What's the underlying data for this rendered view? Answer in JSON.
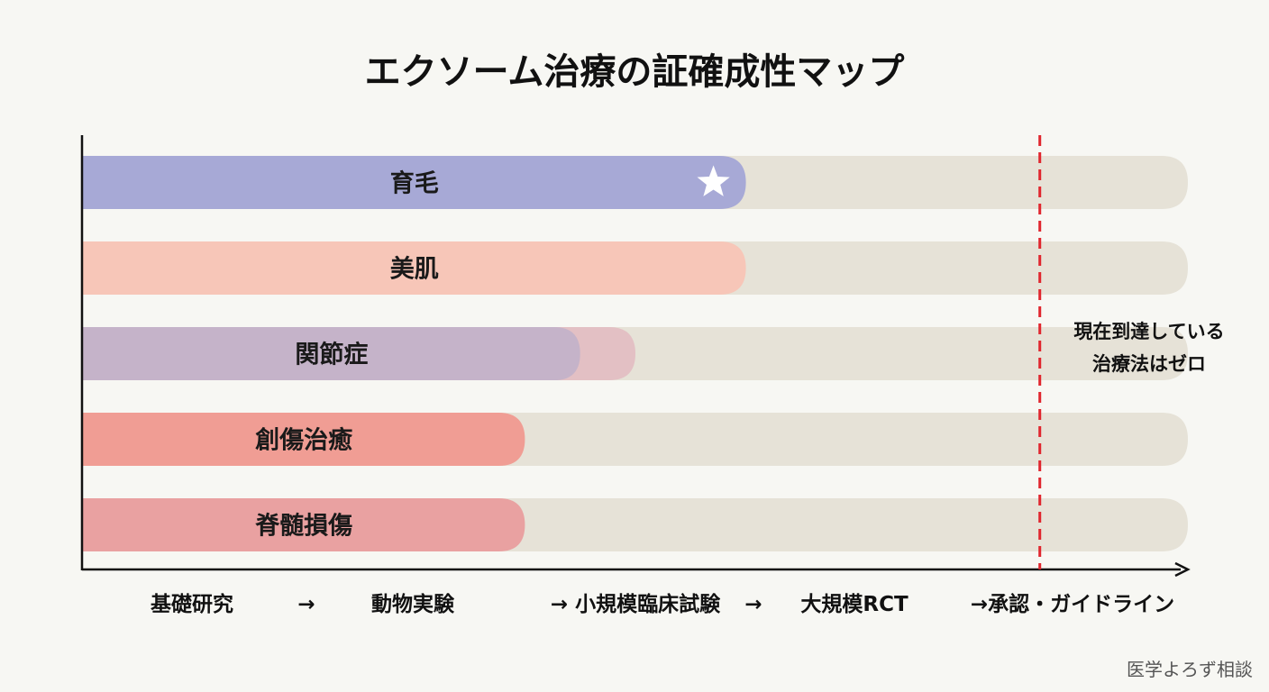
{
  "chart_data": {
    "type": "bar",
    "orientation": "horizontal",
    "title": "エクソーム治療の証確成性マップ",
    "xlabel": "",
    "ylabel": "",
    "xlim": [
      0,
      5
    ],
    "x_tick_labels": [
      "基礎研究",
      "→",
      "動物実験",
      "→ 小規模臨床試験",
      "→",
      "大規模RCT",
      "→承認・ガイドライン"
    ],
    "stages": [
      "基礎研究",
      "動物実験",
      "小規模臨床試験",
      "大規模RCT",
      "承認・ガイドライン"
    ],
    "categories": [
      "育毛",
      "美肌",
      "関節症",
      "創傷治癒",
      "脊髄損傷"
    ],
    "values": [
      3,
      3,
      2.25,
      2,
      2
    ],
    "secondary_values": [
      null,
      null,
      2.5,
      null,
      null
    ],
    "colors": [
      "#a7a9d6",
      "#f7c6b8",
      "#c5b3c9",
      "#f09d94",
      "#e9a1a1"
    ],
    "secondary_color": "#e3c0c4",
    "track_color": "#e6e2d7",
    "markers": [
      {
        "category": "育毛",
        "symbol": "star"
      }
    ],
    "reference_line": {
      "x": 4.33,
      "style": "dashed",
      "color": "#e0262e",
      "annotation": [
        "現在到達している",
        "治療法はゼロ"
      ]
    },
    "grid": false
  },
  "watermark": "医学よろず相談"
}
